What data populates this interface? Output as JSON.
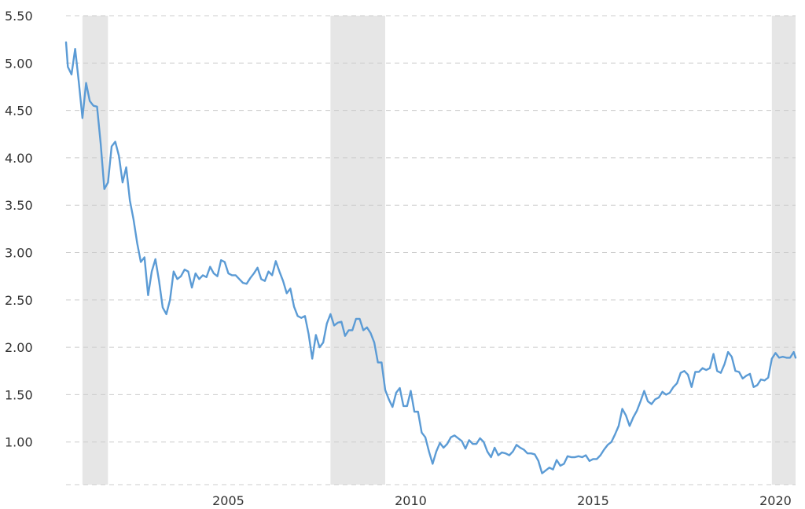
{
  "chart_data": {
    "type": "line",
    "title": "",
    "xlabel": "",
    "ylabel": "",
    "grid": true,
    "xlim": [
      2000.55,
      2020.55
    ],
    "ylim": [
      0.55,
      5.5
    ],
    "y_ticks": [
      "1.00",
      "1.50",
      "2.00",
      "2.50",
      "3.00",
      "3.50",
      "4.00",
      "4.50",
      "5.00",
      "5.50"
    ],
    "x_ticks": [
      "2005",
      "2010",
      "2015",
      "2020"
    ],
    "colors": {
      "line": "#5b9bd5",
      "recession": "#e6e6e6",
      "grid": "#cccccc"
    },
    "recessions": [
      {
        "start": 2001.0,
        "end": 2001.7
      },
      {
        "start": 2007.8,
        "end": 2009.3
      },
      {
        "start": 2019.9,
        "end": 2020.55
      }
    ],
    "series": [
      {
        "name": "",
        "points": [
          [
            2000.55,
            5.22
          ],
          [
            2000.6,
            4.96
          ],
          [
            2000.7,
            4.88
          ],
          [
            2000.8,
            5.15
          ],
          [
            2000.9,
            4.8
          ],
          [
            2001.0,
            4.42
          ],
          [
            2001.1,
            4.79
          ],
          [
            2001.2,
            4.6
          ],
          [
            2001.3,
            4.55
          ],
          [
            2001.4,
            4.54
          ],
          [
            2001.5,
            4.15
          ],
          [
            2001.6,
            3.67
          ],
          [
            2001.7,
            3.74
          ],
          [
            2001.8,
            4.12
          ],
          [
            2001.9,
            4.17
          ],
          [
            2002.0,
            4.02
          ],
          [
            2002.1,
            3.74
          ],
          [
            2002.2,
            3.9
          ],
          [
            2002.3,
            3.55
          ],
          [
            2002.4,
            3.35
          ],
          [
            2002.5,
            3.1
          ],
          [
            2002.6,
            2.9
          ],
          [
            2002.7,
            2.95
          ],
          [
            2002.8,
            2.55
          ],
          [
            2002.9,
            2.8
          ],
          [
            2003.0,
            2.93
          ],
          [
            2003.1,
            2.7
          ],
          [
            2003.2,
            2.42
          ],
          [
            2003.3,
            2.35
          ],
          [
            2003.4,
            2.5
          ],
          [
            2003.5,
            2.8
          ],
          [
            2003.6,
            2.72
          ],
          [
            2003.7,
            2.75
          ],
          [
            2003.8,
            2.82
          ],
          [
            2003.9,
            2.8
          ],
          [
            2004.0,
            2.63
          ],
          [
            2004.1,
            2.78
          ],
          [
            2004.2,
            2.72
          ],
          [
            2004.3,
            2.76
          ],
          [
            2004.4,
            2.74
          ],
          [
            2004.5,
            2.85
          ],
          [
            2004.6,
            2.78
          ],
          [
            2004.7,
            2.75
          ],
          [
            2004.8,
            2.92
          ],
          [
            2004.9,
            2.9
          ],
          [
            2005.0,
            2.78
          ],
          [
            2005.1,
            2.76
          ],
          [
            2005.2,
            2.76
          ],
          [
            2005.3,
            2.72
          ],
          [
            2005.4,
            2.68
          ],
          [
            2005.5,
            2.67
          ],
          [
            2005.6,
            2.73
          ],
          [
            2005.7,
            2.78
          ],
          [
            2005.8,
            2.84
          ],
          [
            2005.9,
            2.72
          ],
          [
            2006.0,
            2.7
          ],
          [
            2006.1,
            2.8
          ],
          [
            2006.2,
            2.76
          ],
          [
            2006.3,
            2.91
          ],
          [
            2006.4,
            2.8
          ],
          [
            2006.5,
            2.7
          ],
          [
            2006.6,
            2.57
          ],
          [
            2006.7,
            2.62
          ],
          [
            2006.8,
            2.43
          ],
          [
            2006.9,
            2.33
          ],
          [
            2007.0,
            2.31
          ],
          [
            2007.1,
            2.33
          ],
          [
            2007.2,
            2.14
          ],
          [
            2007.3,
            1.88
          ],
          [
            2007.4,
            2.13
          ],
          [
            2007.5,
            2.0
          ],
          [
            2007.6,
            2.05
          ],
          [
            2007.7,
            2.25
          ],
          [
            2007.8,
            2.35
          ],
          [
            2007.9,
            2.23
          ],
          [
            2008.0,
            2.26
          ],
          [
            2008.1,
            2.27
          ],
          [
            2008.2,
            2.12
          ],
          [
            2008.3,
            2.18
          ],
          [
            2008.4,
            2.18
          ],
          [
            2008.5,
            2.3
          ],
          [
            2008.6,
            2.3
          ],
          [
            2008.7,
            2.18
          ],
          [
            2008.8,
            2.21
          ],
          [
            2008.9,
            2.15
          ],
          [
            2009.0,
            2.05
          ],
          [
            2009.1,
            1.84
          ],
          [
            2009.2,
            1.84
          ],
          [
            2009.3,
            1.55
          ],
          [
            2009.4,
            1.45
          ],
          [
            2009.5,
            1.37
          ],
          [
            2009.6,
            1.52
          ],
          [
            2009.7,
            1.57
          ],
          [
            2009.8,
            1.38
          ],
          [
            2009.9,
            1.38
          ],
          [
            2010.0,
            1.54
          ],
          [
            2010.1,
            1.32
          ],
          [
            2010.2,
            1.32
          ],
          [
            2010.3,
            1.1
          ],
          [
            2010.4,
            1.05
          ],
          [
            2010.5,
            0.9
          ],
          [
            2010.6,
            0.77
          ],
          [
            2010.7,
            0.9
          ],
          [
            2010.8,
            0.99
          ],
          [
            2010.9,
            0.94
          ],
          [
            2011.0,
            0.98
          ],
          [
            2011.1,
            1.05
          ],
          [
            2011.2,
            1.07
          ],
          [
            2011.3,
            1.04
          ],
          [
            2011.4,
            1.01
          ],
          [
            2011.5,
            0.93
          ],
          [
            2011.6,
            1.02
          ],
          [
            2011.7,
            0.98
          ],
          [
            2011.8,
            0.98
          ],
          [
            2011.9,
            1.04
          ],
          [
            2012.0,
            1.0
          ],
          [
            2012.1,
            0.9
          ],
          [
            2012.2,
            0.84
          ],
          [
            2012.3,
            0.94
          ],
          [
            2012.4,
            0.86
          ],
          [
            2012.5,
            0.89
          ],
          [
            2012.6,
            0.88
          ],
          [
            2012.7,
            0.86
          ],
          [
            2012.8,
            0.9
          ],
          [
            2012.9,
            0.97
          ],
          [
            2013.0,
            0.94
          ],
          [
            2013.1,
            0.92
          ],
          [
            2013.2,
            0.88
          ],
          [
            2013.3,
            0.88
          ],
          [
            2013.4,
            0.87
          ],
          [
            2013.5,
            0.8
          ],
          [
            2013.6,
            0.67
          ],
          [
            2013.7,
            0.7
          ],
          [
            2013.8,
            0.73
          ],
          [
            2013.9,
            0.71
          ],
          [
            2014.0,
            0.81
          ],
          [
            2014.1,
            0.75
          ],
          [
            2014.2,
            0.77
          ],
          [
            2014.3,
            0.85
          ],
          [
            2014.4,
            0.84
          ],
          [
            2014.5,
            0.84
          ],
          [
            2014.6,
            0.85
          ],
          [
            2014.7,
            0.84
          ],
          [
            2014.8,
            0.86
          ],
          [
            2014.9,
            0.8
          ],
          [
            2015.0,
            0.82
          ],
          [
            2015.1,
            0.82
          ],
          [
            2015.2,
            0.86
          ],
          [
            2015.3,
            0.92
          ],
          [
            2015.4,
            0.97
          ],
          [
            2015.5,
            1.0
          ],
          [
            2015.6,
            1.08
          ],
          [
            2015.7,
            1.17
          ],
          [
            2015.8,
            1.35
          ],
          [
            2015.9,
            1.28
          ],
          [
            2016.0,
            1.17
          ],
          [
            2016.1,
            1.26
          ],
          [
            2016.2,
            1.33
          ],
          [
            2016.3,
            1.43
          ],
          [
            2016.4,
            1.54
          ],
          [
            2016.5,
            1.43
          ],
          [
            2016.6,
            1.4
          ],
          [
            2016.7,
            1.45
          ],
          [
            2016.8,
            1.47
          ],
          [
            2016.9,
            1.53
          ],
          [
            2017.0,
            1.5
          ],
          [
            2017.1,
            1.52
          ],
          [
            2017.2,
            1.58
          ],
          [
            2017.3,
            1.62
          ],
          [
            2017.4,
            1.73
          ],
          [
            2017.5,
            1.75
          ],
          [
            2017.6,
            1.71
          ],
          [
            2017.7,
            1.58
          ],
          [
            2017.8,
            1.74
          ],
          [
            2017.9,
            1.74
          ],
          [
            2018.0,
            1.78
          ],
          [
            2018.1,
            1.76
          ],
          [
            2018.2,
            1.78
          ],
          [
            2018.3,
            1.93
          ],
          [
            2018.4,
            1.75
          ],
          [
            2018.5,
            1.73
          ],
          [
            2018.6,
            1.82
          ],
          [
            2018.7,
            1.95
          ],
          [
            2018.8,
            1.9
          ],
          [
            2018.9,
            1.75
          ],
          [
            2019.0,
            1.74
          ],
          [
            2019.1,
            1.67
          ],
          [
            2019.2,
            1.7
          ],
          [
            2019.3,
            1.72
          ],
          [
            2019.4,
            1.58
          ],
          [
            2019.5,
            1.6
          ],
          [
            2019.6,
            1.66
          ],
          [
            2019.7,
            1.65
          ],
          [
            2019.8,
            1.68
          ],
          [
            2019.9,
            1.88
          ],
          [
            2020.0,
            1.94
          ],
          [
            2020.1,
            1.89
          ],
          [
            2020.2,
            1.9
          ],
          [
            2020.3,
            1.89
          ],
          [
            2020.4,
            1.89
          ],
          [
            2020.5,
            1.95
          ],
          [
            2020.55,
            1.89
          ]
        ]
      }
    ]
  }
}
